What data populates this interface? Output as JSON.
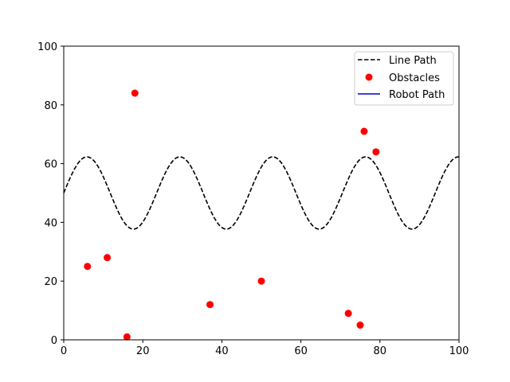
{
  "chart_data": {
    "type": "line",
    "title": "",
    "xlabel": "",
    "ylabel": "",
    "xlim": [
      0,
      100
    ],
    "ylim": [
      0,
      100
    ],
    "xticks": [
      0,
      20,
      40,
      60,
      80,
      100
    ],
    "yticks": [
      0,
      20,
      40,
      60,
      80,
      100
    ],
    "xtick_labels": [
      "0",
      "20",
      "40",
      "60",
      "80",
      "100"
    ],
    "ytick_labels": [
      "0",
      "20",
      "40",
      "60",
      "80",
      "100"
    ],
    "grid": false,
    "legend": {
      "position": "top-right",
      "entries": [
        "Line Path",
        "Obstacles",
        "Robot Path"
      ]
    },
    "series": [
      {
        "name": "Line Path",
        "kind": "line",
        "style": "dashed",
        "color": "#000000",
        "function": {
          "form": "offset + amplitude * sin(2*pi*x/period)",
          "offset": 50,
          "amplitude": 12.3,
          "period": 23.5
        },
        "x": [
          0,
          3,
          6,
          9,
          12,
          15,
          18,
          21,
          24,
          27,
          30,
          33,
          36,
          39,
          42,
          45,
          48,
          51,
          54,
          57,
          60,
          63,
          66,
          69,
          72,
          75,
          78,
          81,
          84,
          87,
          90,
          93,
          96,
          100
        ],
        "y": [
          50,
          58.6,
          62.2,
          58.3,
          49.6,
          41.3,
          37.8,
          42.3,
          51.7,
          59.6,
          62.2,
          57.2,
          47.6,
          39.6,
          38.2,
          44.8,
          54.5,
          61.2,
          61.2,
          54.0,
          44.4,
          38.4,
          39.0,
          47.0,
          56.8,
          61.9,
          59.9,
          51.6,
          42.2,
          37.9,
          41.1,
          49.8,
          58.4,
          62.3
        ]
      },
      {
        "name": "Obstacles",
        "kind": "scatter",
        "color": "#ff0000",
        "points": [
          {
            "x": 6,
            "y": 25
          },
          {
            "x": 11,
            "y": 28
          },
          {
            "x": 16,
            "y": 1
          },
          {
            "x": 18,
            "y": 84
          },
          {
            "x": 37,
            "y": 12
          },
          {
            "x": 50,
            "y": 20
          },
          {
            "x": 72,
            "y": 9
          },
          {
            "x": 75,
            "y": 5
          },
          {
            "x": 76,
            "y": 71
          },
          {
            "x": 79,
            "y": 64
          }
        ]
      },
      {
        "name": "Robot Path",
        "kind": "line",
        "style": "solid",
        "color": "#0000cc",
        "x": [],
        "y": []
      }
    ]
  }
}
